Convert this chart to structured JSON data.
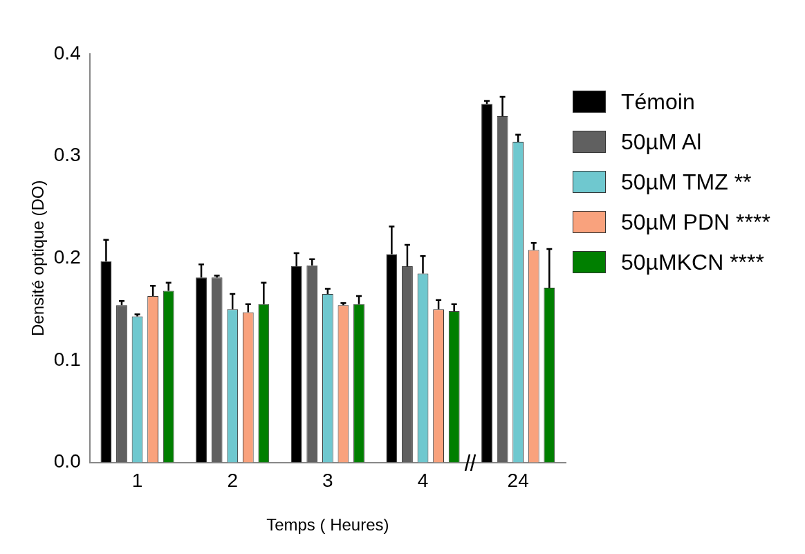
{
  "chart_data": {
    "type": "bar",
    "xlabel": "Temps ( Heures)",
    "ylabel": "Densité optique (DO)",
    "categories": [
      "1",
      "2",
      "3",
      "4",
      "24"
    ],
    "series": [
      {
        "name": "Témoin",
        "color": "#000000",
        "values": [
          0.197,
          0.181,
          0.192,
          0.204,
          0.351
        ],
        "errors": [
          [
            0.197,
            0.218
          ],
          [
            0.181,
            0.194
          ],
          [
            0.192,
            0.205
          ],
          [
            0.204,
            0.231
          ],
          [
            0.351,
            0.354
          ]
        ]
      },
      {
        "name": "50µM Al",
        "color": "#606060",
        "values": [
          0.154,
          0.181,
          0.193,
          0.192,
          0.339
        ],
        "errors": [
          [
            0.154,
            0.158
          ],
          [
            0.181,
            0.183
          ],
          [
            0.193,
            0.199
          ],
          [
            0.192,
            0.213
          ],
          [
            0.339,
            0.358
          ]
        ]
      },
      {
        "name": "50µM TMZ  **",
        "color": "#6fc8cf",
        "values": [
          0.143,
          0.15,
          0.165,
          0.185,
          0.314
        ],
        "errors": [
          [
            0.143,
            0.145
          ],
          [
            0.15,
            0.165
          ],
          [
            0.165,
            0.17
          ],
          [
            0.185,
            0.202
          ],
          [
            0.314,
            0.321
          ]
        ]
      },
      {
        "name": "50µM PDN ****",
        "color": "#f9a27d",
        "values": [
          0.163,
          0.147,
          0.154,
          0.15,
          0.208
        ],
        "errors": [
          [
            0.163,
            0.173
          ],
          [
            0.147,
            0.155
          ],
          [
            0.154,
            0.156
          ],
          [
            0.15,
            0.159
          ],
          [
            0.208,
            0.215
          ]
        ]
      },
      {
        "name": "50µMKCN ****",
        "color": "#007f00",
        "values": [
          0.168,
          0.155,
          0.155,
          0.148,
          0.171
        ],
        "errors": [
          [
            0.168,
            0.176
          ],
          [
            0.155,
            0.176
          ],
          [
            0.155,
            0.163
          ],
          [
            0.148,
            0.155
          ],
          [
            0.171,
            0.209
          ]
        ]
      }
    ],
    "ylim": [
      0,
      0.4
    ],
    "yticks": [
      {
        "value": 0,
        "label": "0.0"
      },
      {
        "value": 0.1,
        "label": "0.1"
      },
      {
        "value": 0.2,
        "label": "0.2"
      },
      {
        "value": 0.3,
        "label": "0.3"
      },
      {
        "value": 0.4,
        "label": "0.4"
      }
    ],
    "grid": false,
    "legend": "right"
  }
}
